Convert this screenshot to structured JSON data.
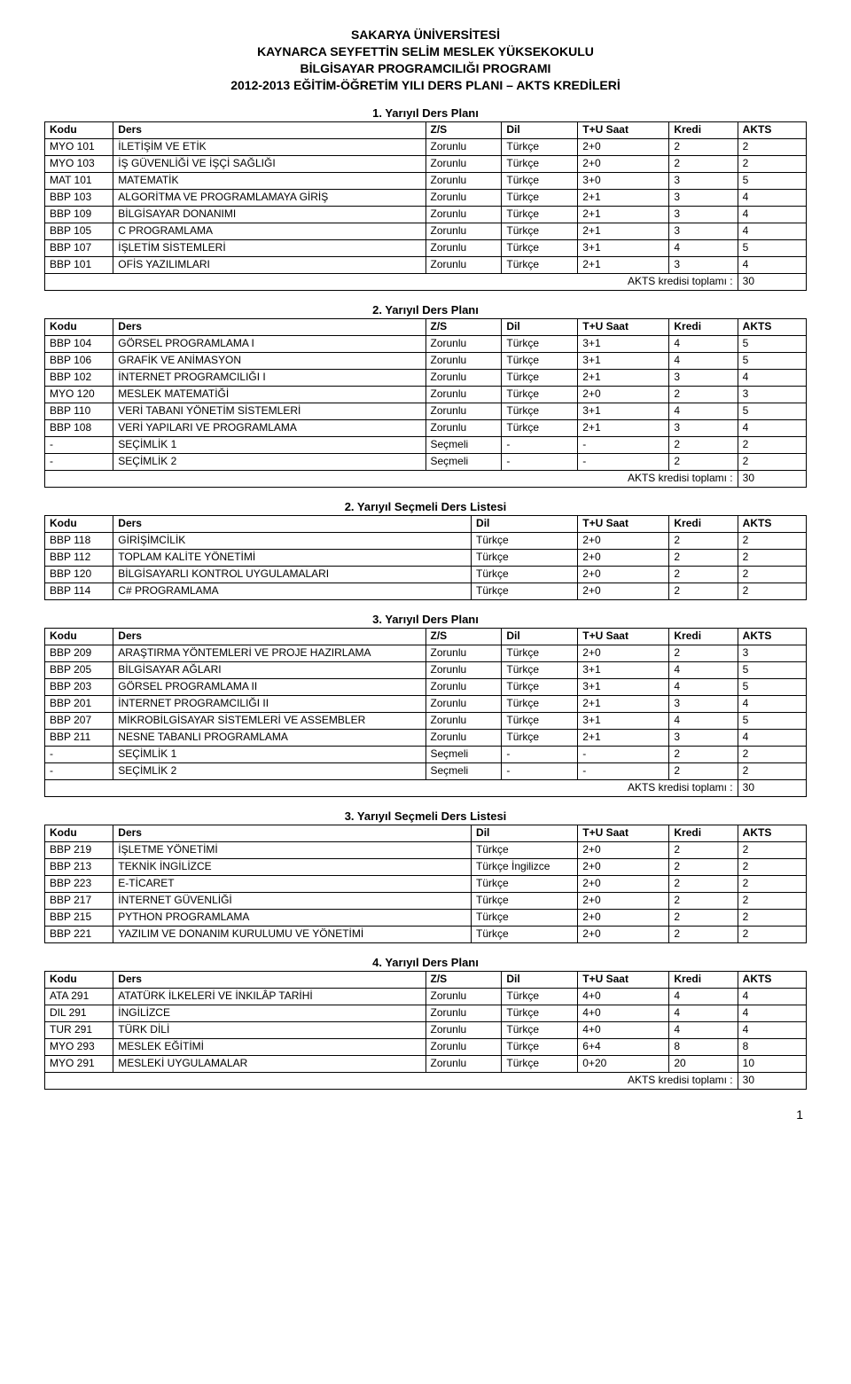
{
  "header": {
    "line1": "SAKARYA ÜNİVERSİTESİ",
    "line2": "KAYNARCA SEYFETTİN SELİM MESLEK YÜKSEKOKULU",
    "line3": "BİLGİSAYAR PROGRAMCILIĞI PROGRAMI",
    "line4": "2012-2013 EĞİTİM-ÖĞRETİM YILI DERS PLANI – AKTS KREDİLERİ"
  },
  "labels": {
    "kodu": "Kodu",
    "ders": "Ders",
    "zs": "Z/S",
    "dil": "Dil",
    "tu": "T+U Saat",
    "kredi": "Kredi",
    "akts": "AKTS",
    "totals": "AKTS kredisi toplamı :"
  },
  "page_number": "1",
  "tables": [
    {
      "title": "1. Yarıyıl Ders Planı",
      "type": "full",
      "rows": [
        [
          "MYO 101",
          "İLETİŞİM VE ETİK",
          "Zorunlu",
          "Türkçe",
          "2+0",
          "2",
          "2"
        ],
        [
          "MYO 103",
          "İŞ GÜVENLİĞİ VE İŞÇİ SAĞLIĞI",
          "Zorunlu",
          "Türkçe",
          "2+0",
          "2",
          "2"
        ],
        [
          "MAT 101",
          "MATEMATİK",
          "Zorunlu",
          "Türkçe",
          "3+0",
          "3",
          "5"
        ],
        [
          "BBP 103",
          "ALGORİTMA VE PROGRAMLAMAYA GİRİŞ",
          "Zorunlu",
          "Türkçe",
          "2+1",
          "3",
          "4"
        ],
        [
          "BBP 109",
          "BİLGİSAYAR DONANIMI",
          "Zorunlu",
          "Türkçe",
          "2+1",
          "3",
          "4"
        ],
        [
          "BBP 105",
          "C PROGRAMLAMA",
          "Zorunlu",
          "Türkçe",
          "2+1",
          "3",
          "4"
        ],
        [
          "BBP 107",
          "İŞLETİM SİSTEMLERİ",
          "Zorunlu",
          "Türkçe",
          "3+1",
          "4",
          "5"
        ],
        [
          "BBP 101",
          "OFİS YAZILIMLARI",
          "Zorunlu",
          "Türkçe",
          "2+1",
          "3",
          "4"
        ]
      ],
      "total": "30"
    },
    {
      "title": "2. Yarıyıl Ders Planı",
      "type": "full",
      "rows": [
        [
          "BBP 104",
          "GÖRSEL PROGRAMLAMA I",
          "Zorunlu",
          "Türkçe",
          "3+1",
          "4",
          "5"
        ],
        [
          "BBP 106",
          "GRAFİK VE ANİMASYON",
          "Zorunlu",
          "Türkçe",
          "3+1",
          "4",
          "5"
        ],
        [
          "BBP 102",
          "İNTERNET PROGRAMCILIĞI I",
          "Zorunlu",
          "Türkçe",
          "2+1",
          "3",
          "4"
        ],
        [
          "MYO 120",
          "MESLEK MATEMATİĞİ",
          "Zorunlu",
          "Türkçe",
          "2+0",
          "2",
          "3"
        ],
        [
          "BBP 110",
          "VERİ TABANI YÖNETİM SİSTEMLERİ",
          "Zorunlu",
          "Türkçe",
          "3+1",
          "4",
          "5"
        ],
        [
          "BBP 108",
          "VERİ YAPILARI VE PROGRAMLAMA",
          "Zorunlu",
          "Türkçe",
          "2+1",
          "3",
          "4"
        ],
        [
          "-",
          "SEÇİMLİK 1",
          "Seçmeli",
          "-",
          "-",
          "2",
          "2"
        ],
        [
          "-",
          "SEÇİMLİK 2",
          "Seçmeli",
          "-",
          "-",
          "2",
          "2"
        ]
      ],
      "total": "30"
    },
    {
      "title": "2. Yarıyıl Seçmeli Ders Listesi",
      "type": "elective",
      "rows": [
        [
          "BBP 118",
          "GİRİŞİMCİLİK",
          "Türkçe",
          "2+0",
          "2",
          "2"
        ],
        [
          "BBP 112",
          "TOPLAM KALİTE YÖNETİMİ",
          "Türkçe",
          "2+0",
          "2",
          "2"
        ],
        [
          "BBP 120",
          "BİLGİSAYARLI KONTROL UYGULAMALARI",
          "Türkçe",
          "2+0",
          "2",
          "2"
        ],
        [
          "BBP 114",
          "C# PROGRAMLAMA",
          "Türkçe",
          "2+0",
          "2",
          "2"
        ]
      ]
    },
    {
      "title": "3. Yarıyıl Ders Planı",
      "type": "full",
      "rows": [
        [
          "BBP 209",
          "ARAŞTIRMA YÖNTEMLERİ VE PROJE HAZIRLAMA",
          "Zorunlu",
          "Türkçe",
          "2+0",
          "2",
          "3"
        ],
        [
          "BBP 205",
          "BİLGİSAYAR AĞLARI",
          "Zorunlu",
          "Türkçe",
          "3+1",
          "4",
          "5"
        ],
        [
          "BBP 203",
          "GÖRSEL PROGRAMLAMA II",
          "Zorunlu",
          "Türkçe",
          "3+1",
          "4",
          "5"
        ],
        [
          "BBP 201",
          "İNTERNET PROGRAMCILIĞI II",
          "Zorunlu",
          "Türkçe",
          "2+1",
          "3",
          "4"
        ],
        [
          "BBP 207",
          "MİKROBİLGİSAYAR SİSTEMLERİ VE ASSEMBLER",
          "Zorunlu",
          "Türkçe",
          "3+1",
          "4",
          "5"
        ],
        [
          "BBP 211",
          "NESNE TABANLI PROGRAMLAMA",
          "Zorunlu",
          "Türkçe",
          "2+1",
          "3",
          "4"
        ],
        [
          "-",
          "SEÇİMLİK 1",
          "Seçmeli",
          "-",
          "-",
          "2",
          "2"
        ],
        [
          "-",
          "SEÇİMLİK 2",
          "Seçmeli",
          "-",
          "-",
          "2",
          "2"
        ]
      ],
      "total": "30"
    },
    {
      "title": "3. Yarıyıl Seçmeli Ders Listesi",
      "type": "elective",
      "rows": [
        [
          "BBP 219",
          "İŞLETME YÖNETİMİ",
          "Türkçe",
          "2+0",
          "2",
          "2"
        ],
        [
          "BBP 213",
          "TEKNİK İNGİLİZCE",
          "Türkçe İngilizce",
          "2+0",
          "2",
          "2"
        ],
        [
          "BBP 223",
          "E-TİCARET",
          "Türkçe",
          "2+0",
          "2",
          "2"
        ],
        [
          "BBP 217",
          "İNTERNET GÜVENLİĞİ",
          "Türkçe",
          "2+0",
          "2",
          "2"
        ],
        [
          "BBP 215",
          "PYTHON PROGRAMLAMA",
          "Türkçe",
          "2+0",
          "2",
          "2"
        ],
        [
          "BBP 221",
          "YAZILIM VE DONANIM KURULUMU VE YÖNETİMİ",
          "Türkçe",
          "2+0",
          "2",
          "2"
        ]
      ]
    },
    {
      "title": "4. Yarıyıl Ders Planı",
      "type": "full",
      "rows": [
        [
          "ATA 291",
          "ATATÜRK İLKELERİ VE İNKILÂP TARİHİ",
          "Zorunlu",
          "Türkçe",
          "4+0",
          "4",
          "4"
        ],
        [
          "DIL 291",
          "İNGİLİZCE",
          "Zorunlu",
          "Türkçe",
          "4+0",
          "4",
          "4"
        ],
        [
          "TUR 291",
          "TÜRK DİLİ",
          "Zorunlu",
          "Türkçe",
          "4+0",
          "4",
          "4"
        ],
        [
          "MYO 293",
          "MESLEK EĞİTİMİ",
          "Zorunlu",
          "Türkçe",
          "6+4",
          "8",
          "8"
        ],
        [
          "MYO 291",
          "MESLEKİ UYGULAMALAR",
          "Zorunlu",
          "Türkçe",
          "0+20",
          "20",
          "10"
        ]
      ],
      "total": "30"
    }
  ]
}
